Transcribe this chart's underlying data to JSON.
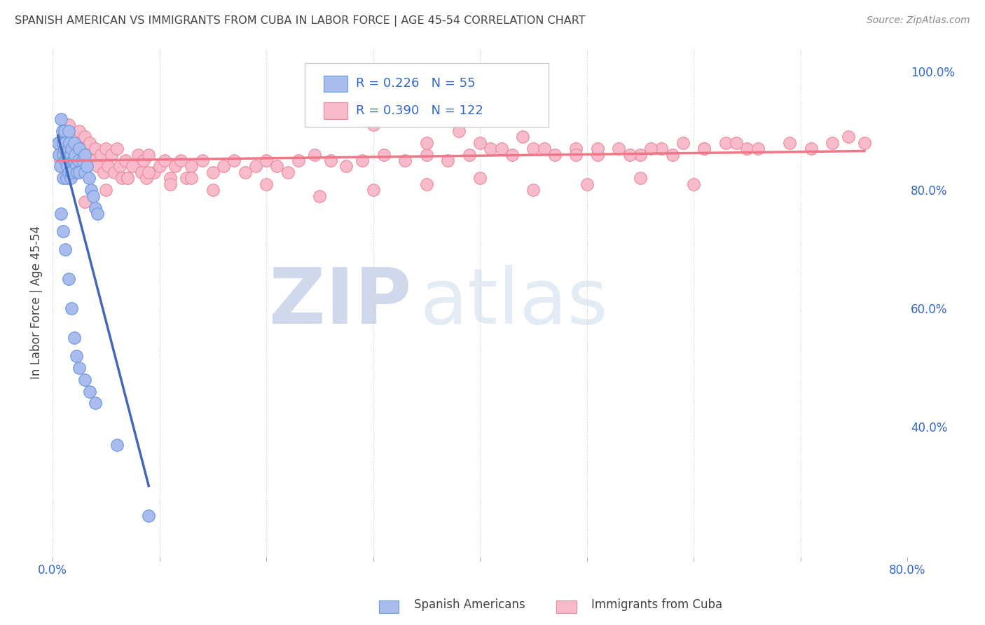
{
  "title": "SPANISH AMERICAN VS IMMIGRANTS FROM CUBA IN LABOR FORCE | AGE 45-54 CORRELATION CHART",
  "source": "Source: ZipAtlas.com",
  "ylabel": "In Labor Force | Age 45-54",
  "xlim": [
    0.0,
    0.8
  ],
  "ylim": [
    0.18,
    1.04
  ],
  "blue_color": "#6699DD",
  "blue_fill": "#AABBEE",
  "pink_color": "#EE8899",
  "pink_fill": "#F8BBCC",
  "pink_line_color": "#EE7788",
  "blue_line_color": "#4466BB",
  "blue_R": 0.226,
  "blue_N": 55,
  "pink_R": 0.39,
  "pink_N": 122,
  "legend_label_blue": "Spanish Americans",
  "legend_label_pink": "Immigrants from Cuba",
  "watermark_zip": "ZIP",
  "watermark_atlas": "atlas",
  "title_color": "#444444",
  "source_color": "#888888",
  "yticks_right": [
    0.4,
    0.6,
    0.8,
    1.0
  ],
  "ytick_right_labels": [
    "40.0%",
    "60.0%",
    "80.0%",
    "100.0%"
  ],
  "blue_scatter_x": [
    0.005,
    0.006,
    0.007,
    0.008,
    0.009,
    0.01,
    0.01,
    0.01,
    0.011,
    0.011,
    0.012,
    0.012,
    0.013,
    0.013,
    0.014,
    0.015,
    0.015,
    0.015,
    0.016,
    0.016,
    0.017,
    0.017,
    0.018,
    0.018,
    0.019,
    0.02,
    0.02,
    0.021,
    0.022,
    0.023,
    0.024,
    0.025,
    0.025,
    0.028,
    0.03,
    0.03,
    0.032,
    0.034,
    0.036,
    0.038,
    0.04,
    0.042,
    0.008,
    0.01,
    0.012,
    0.015,
    0.018,
    0.02,
    0.022,
    0.025,
    0.03,
    0.035,
    0.04,
    0.06,
    0.09
  ],
  "blue_scatter_y": [
    0.88,
    0.86,
    0.84,
    0.92,
    0.9,
    0.88,
    0.86,
    0.82,
    0.9,
    0.87,
    0.88,
    0.85,
    0.86,
    0.82,
    0.84,
    0.9,
    0.87,
    0.83,
    0.88,
    0.85,
    0.86,
    0.82,
    0.87,
    0.83,
    0.85,
    0.88,
    0.85,
    0.86,
    0.84,
    0.83,
    0.85,
    0.87,
    0.83,
    0.85,
    0.86,
    0.83,
    0.84,
    0.82,
    0.8,
    0.79,
    0.77,
    0.76,
    0.76,
    0.73,
    0.7,
    0.65,
    0.6,
    0.55,
    0.52,
    0.5,
    0.48,
    0.46,
    0.44,
    0.37,
    0.25
  ],
  "pink_scatter_x": [
    0.005,
    0.007,
    0.008,
    0.01,
    0.01,
    0.011,
    0.012,
    0.013,
    0.014,
    0.015,
    0.016,
    0.017,
    0.018,
    0.02,
    0.02,
    0.022,
    0.023,
    0.025,
    0.025,
    0.027,
    0.03,
    0.03,
    0.032,
    0.035,
    0.037,
    0.04,
    0.042,
    0.045,
    0.048,
    0.05,
    0.052,
    0.055,
    0.058,
    0.06,
    0.063,
    0.065,
    0.068,
    0.07,
    0.075,
    0.08,
    0.083,
    0.085,
    0.088,
    0.09,
    0.095,
    0.1,
    0.105,
    0.11,
    0.115,
    0.12,
    0.125,
    0.13,
    0.14,
    0.15,
    0.16,
    0.17,
    0.18,
    0.19,
    0.2,
    0.21,
    0.22,
    0.23,
    0.245,
    0.26,
    0.275,
    0.29,
    0.31,
    0.33,
    0.35,
    0.37,
    0.39,
    0.41,
    0.43,
    0.45,
    0.47,
    0.49,
    0.51,
    0.53,
    0.55,
    0.57,
    0.59,
    0.61,
    0.63,
    0.65,
    0.03,
    0.05,
    0.07,
    0.09,
    0.11,
    0.13,
    0.15,
    0.2,
    0.25,
    0.3,
    0.35,
    0.4,
    0.45,
    0.5,
    0.55,
    0.6,
    0.25,
    0.27,
    0.3,
    0.35,
    0.38,
    0.4,
    0.42,
    0.44,
    0.46,
    0.49,
    0.51,
    0.54,
    0.56,
    0.58,
    0.61,
    0.64,
    0.66,
    0.69,
    0.71,
    0.73,
    0.745,
    0.76
  ],
  "pink_scatter_y": [
    0.88,
    0.85,
    0.87,
    0.9,
    0.87,
    0.89,
    0.86,
    0.88,
    0.85,
    0.91,
    0.88,
    0.86,
    0.89,
    0.87,
    0.84,
    0.88,
    0.85,
    0.9,
    0.87,
    0.86,
    0.89,
    0.86,
    0.87,
    0.88,
    0.85,
    0.87,
    0.84,
    0.86,
    0.83,
    0.87,
    0.84,
    0.86,
    0.83,
    0.87,
    0.84,
    0.82,
    0.85,
    0.82,
    0.84,
    0.86,
    0.83,
    0.85,
    0.82,
    0.86,
    0.83,
    0.84,
    0.85,
    0.82,
    0.84,
    0.85,
    0.82,
    0.84,
    0.85,
    0.83,
    0.84,
    0.85,
    0.83,
    0.84,
    0.85,
    0.84,
    0.83,
    0.85,
    0.86,
    0.85,
    0.84,
    0.85,
    0.86,
    0.85,
    0.86,
    0.85,
    0.86,
    0.87,
    0.86,
    0.87,
    0.86,
    0.87,
    0.86,
    0.87,
    0.86,
    0.87,
    0.88,
    0.87,
    0.88,
    0.87,
    0.78,
    0.8,
    0.82,
    0.83,
    0.81,
    0.82,
    0.8,
    0.81,
    0.79,
    0.8,
    0.81,
    0.82,
    0.8,
    0.81,
    0.82,
    0.81,
    0.92,
    0.95,
    0.91,
    0.88,
    0.9,
    0.88,
    0.87,
    0.89,
    0.87,
    0.86,
    0.87,
    0.86,
    0.87,
    0.86,
    0.87,
    0.88,
    0.87,
    0.88,
    0.87,
    0.88,
    0.89,
    0.88
  ]
}
